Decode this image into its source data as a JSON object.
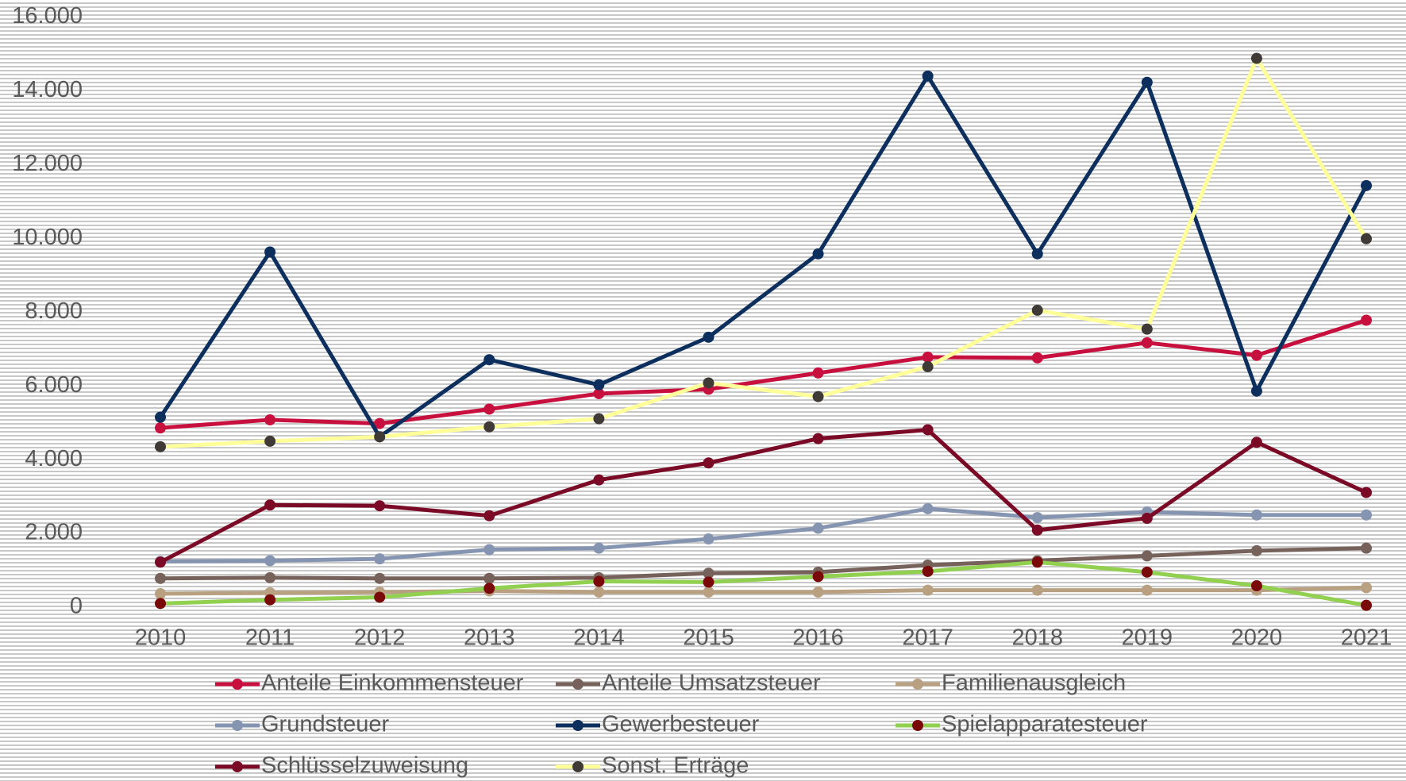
{
  "chart_data": {
    "type": "line",
    "categories": [
      "2010",
      "2011",
      "2012",
      "2013",
      "2014",
      "2015",
      "2016",
      "2017",
      "2018",
      "2019",
      "2020",
      "2021"
    ],
    "ylim": [
      0,
      16000
    ],
    "yticks": [
      {
        "value": 0,
        "label": "0"
      },
      {
        "value": 2000,
        "label": "2.000"
      },
      {
        "value": 4000,
        "label": "4.000"
      },
      {
        "value": 6000,
        "label": "6.000"
      },
      {
        "value": 8000,
        "label": "8.000"
      },
      {
        "value": 10000,
        "label": "10.000"
      },
      {
        "value": 12000,
        "label": "12.000"
      },
      {
        "value": 14000,
        "label": "14.000"
      },
      {
        "value": 16000,
        "label": "16.000"
      }
    ],
    "series": [
      {
        "name": "Anteile Einkommensteuer",
        "color": "#c8103e",
        "marker_color": "#c8103e",
        "values": [
          4860,
          5080,
          4980,
          5370,
          5790,
          5910,
          6350,
          6780,
          6760,
          7170,
          6830,
          7780
        ]
      },
      {
        "name": "Anteile Umsatzsteuer",
        "color": "#76625a",
        "marker_color": "#76625a",
        "values": [
          780,
          800,
          780,
          780,
          800,
          920,
          950,
          1140,
          1260,
          1390,
          1530,
          1600
        ]
      },
      {
        "name": "Familienausgleich",
        "color": "#b8a080",
        "marker_color": "#b8a080",
        "values": [
          365,
          390,
          410,
          440,
          410,
          410,
          410,
          460,
          460,
          460,
          460,
          530
        ]
      },
      {
        "name": "Grundsteuer",
        "color": "#8595b1",
        "marker_color": "#8595b1",
        "values": [
          1240,
          1260,
          1310,
          1560,
          1600,
          1850,
          2140,
          2670,
          2430,
          2580,
          2500,
          2500
        ]
      },
      {
        "name": "Gewerbesteuer",
        "color": "#0d2f5e",
        "marker_color": "#0d2f5e",
        "values": [
          5150,
          9630,
          4620,
          6710,
          6030,
          7320,
          9580,
          14400,
          9580,
          14230,
          5860,
          11430
        ]
      },
      {
        "name": "Spielapparatesteuer",
        "color": "#92d050",
        "marker_color": "#7a0a0a",
        "values": [
          100,
          200,
          270,
          510,
          700,
          680,
          830,
          970,
          1220,
          950,
          580,
          50
        ]
      },
      {
        "name": "Schlüsselzuweisung",
        "color": "#7b0a26",
        "marker_color": "#7b0a26",
        "values": [
          1220,
          2770,
          2750,
          2480,
          3450,
          3910,
          4570,
          4810,
          2090,
          2410,
          4470,
          3110
        ]
      },
      {
        "name": "Sonst. Erträge",
        "color": "#ffff99",
        "marker_color": "#3f3a36",
        "values": [
          4350,
          4500,
          4620,
          4890,
          5110,
          6080,
          5710,
          6520,
          8050,
          7540,
          14880,
          9990
        ]
      }
    ]
  }
}
